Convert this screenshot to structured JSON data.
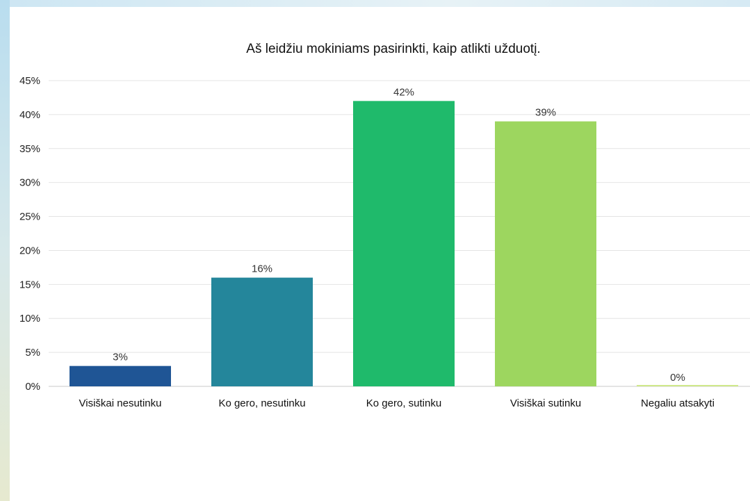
{
  "chart_data": {
    "type": "bar",
    "title": "Aš leidžiu mokiniams pasirinkti, kaip atlikti užduotį.",
    "xlabel": "",
    "ylabel": "",
    "categories": [
      "Visiškai nesutinku",
      "Ko gero, nesutinku",
      "Ko gero, sutinku",
      "Visiškai sutinku",
      "Negaliu atsakyti"
    ],
    "values": [
      3,
      16,
      42,
      39,
      0
    ],
    "data_labels": [
      "3%",
      "16%",
      "42%",
      "39%",
      "0%"
    ],
    "colors": [
      "#1f5595",
      "#24869b",
      "#1fba6b",
      "#9dd65f",
      "#cfe88a"
    ],
    "ylim": [
      0,
      45
    ],
    "yticks": [
      0,
      5,
      10,
      15,
      20,
      25,
      30,
      35,
      40,
      45
    ],
    "ytick_labels": [
      "0%",
      "5%",
      "10%",
      "15%",
      "20%",
      "25%",
      "30%",
      "35%",
      "40%",
      "45%"
    ],
    "grid": true,
    "legend": "none"
  }
}
